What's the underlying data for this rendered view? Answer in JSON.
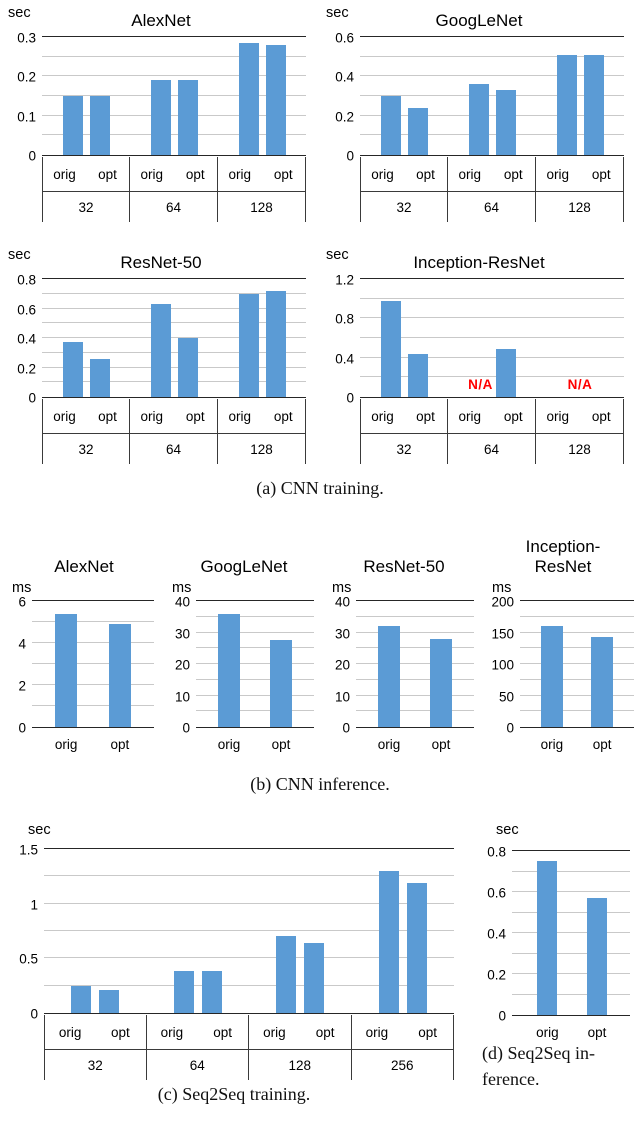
{
  "figure": {
    "captions": {
      "a": "(a) CNN training.",
      "b": "(b) CNN inference.",
      "c": "(c) Seq2Seq training.",
      "d": "(d) Seq2Seq in-\nference."
    }
  },
  "colors": {
    "bar": "#5B9BD5",
    "na": "#FF0000",
    "gridline": "#C9C9C9",
    "axis": "#262626"
  },
  "chart_data": [
    {
      "key": "cnn-training-alexnet",
      "section": "a",
      "type": "bar",
      "title": "AlexNet",
      "unit": "sec",
      "ylim": [
        0,
        0.3
      ],
      "yticks": [
        "0",
        "0.1",
        "0.2",
        "0.3"
      ],
      "minor_gridline_step": 0.05,
      "grid": true,
      "categories": [
        "32",
        "64",
        "128"
      ],
      "series": [
        {
          "name": "orig",
          "values": [
            0.15,
            0.19,
            0.285
          ]
        },
        {
          "name": "opt",
          "values": [
            0.15,
            0.19,
            0.28
          ]
        }
      ]
    },
    {
      "key": "cnn-training-googlenet",
      "section": "a",
      "type": "bar",
      "title": "GoogLeNet",
      "unit": "sec",
      "ylim": [
        0,
        0.6
      ],
      "yticks": [
        "0",
        "0.2",
        "0.4",
        "0.6"
      ],
      "minor_gridline_step": 0.1,
      "grid": true,
      "categories": [
        "32",
        "64",
        "128"
      ],
      "series": [
        {
          "name": "orig",
          "values": [
            0.3,
            0.36,
            0.51
          ]
        },
        {
          "name": "opt",
          "values": [
            0.24,
            0.33,
            0.51
          ]
        }
      ]
    },
    {
      "key": "cnn-training-resnet-50",
      "section": "a",
      "type": "bar",
      "title": "ResNet-50",
      "unit": "sec",
      "ylim": [
        0,
        0.8
      ],
      "yticks": [
        "0",
        "0.2",
        "0.4",
        "0.6",
        "0.8"
      ],
      "minor_gridline_step": 0.1,
      "grid": true,
      "categories": [
        "32",
        "64",
        "128"
      ],
      "series": [
        {
          "name": "orig",
          "values": [
            0.37,
            0.63,
            0.7
          ]
        },
        {
          "name": "opt",
          "values": [
            0.26,
            0.4,
            0.72
          ]
        }
      ]
    },
    {
      "key": "cnn-training-inception-resnet",
      "section": "a",
      "type": "bar",
      "title": "Inception-ResNet",
      "unit": "sec",
      "ylim": [
        0,
        1.2
      ],
      "yticks": [
        "0",
        "0.4",
        "0.8",
        "1.2"
      ],
      "minor_gridline_step": 0.2,
      "grid": true,
      "categories": [
        "32",
        "64",
        "128"
      ],
      "series": [
        {
          "name": "orig",
          "values": [
            0.98,
            null,
            null
          ]
        },
        {
          "name": "opt",
          "values": [
            0.44,
            0.49,
            null
          ]
        }
      ],
      "na_labels": [
        {
          "category": "64",
          "text": "N/A"
        },
        {
          "category": "128",
          "text": "N/A"
        }
      ]
    },
    {
      "key": "cnn-inference-alexnet",
      "section": "b",
      "type": "bar",
      "title": "AlexNet",
      "unit": "ms",
      "ylim": [
        0,
        6
      ],
      "yticks": [
        "0",
        "2",
        "4",
        "6"
      ],
      "minor_gridline_step": 1,
      "grid": true,
      "categories": [
        "orig",
        "opt"
      ],
      "values": [
        5.4,
        4.9
      ]
    },
    {
      "key": "cnn-inference-googlenet",
      "section": "b",
      "type": "bar",
      "title": "GoogLeNet",
      "unit": "ms",
      "ylim": [
        0,
        40
      ],
      "yticks": [
        "0",
        "10",
        "20",
        "30",
        "40"
      ],
      "minor_gridline_step": 5,
      "grid": true,
      "categories": [
        "orig",
        "opt"
      ],
      "values": [
        36,
        27.5
      ]
    },
    {
      "key": "cnn-inference-resnet-50",
      "section": "b",
      "type": "bar",
      "title": "ResNet-50",
      "unit": "ms",
      "ylim": [
        0,
        40
      ],
      "yticks": [
        "0",
        "10",
        "20",
        "30",
        "40"
      ],
      "minor_gridline_step": 5,
      "grid": true,
      "categories": [
        "orig",
        "opt"
      ],
      "values": [
        32,
        28
      ]
    },
    {
      "key": "cnn-inference-inception-resnet",
      "section": "b",
      "type": "bar",
      "title": "Inception-\nResNet",
      "unit": "ms",
      "ylim": [
        0,
        200
      ],
      "yticks": [
        "0",
        "50",
        "100",
        "150",
        "200"
      ],
      "minor_gridline_step": 25,
      "grid": true,
      "categories": [
        "orig",
        "opt"
      ],
      "values": [
        160,
        143
      ]
    },
    {
      "key": "seq2seq-training",
      "section": "c",
      "type": "bar",
      "unit": "sec",
      "ylim": [
        0,
        1.5
      ],
      "yticks": [
        "0",
        "0.5",
        "1",
        "1.5"
      ],
      "minor_gridline_step": 0.25,
      "grid": true,
      "categories": [
        "32",
        "64",
        "128",
        "256"
      ],
      "series": [
        {
          "name": "orig",
          "values": [
            0.25,
            0.38,
            0.7,
            1.3
          ]
        },
        {
          "name": "opt",
          "values": [
            0.21,
            0.38,
            0.64,
            1.19
          ]
        }
      ]
    },
    {
      "key": "seq2seq-inference",
      "section": "d",
      "type": "bar",
      "unit": "sec",
      "ylim": [
        0,
        0.8
      ],
      "yticks": [
        "0",
        "0.2",
        "0.4",
        "0.6",
        "0.8"
      ],
      "minor_gridline_step": 0.1,
      "grid": true,
      "categories": [
        "orig",
        "opt"
      ],
      "values": [
        0.75,
        0.57
      ]
    }
  ]
}
